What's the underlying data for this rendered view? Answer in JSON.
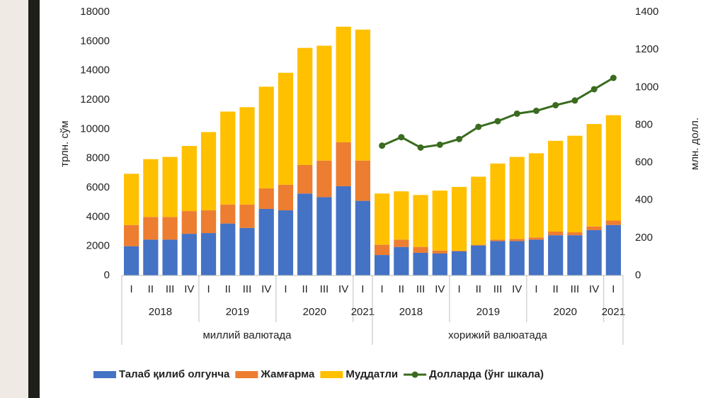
{
  "chart_data": {
    "type": "bar",
    "stacked": true,
    "categories": [
      "I",
      "II",
      "III",
      "IV",
      "I",
      "II",
      "III",
      "IV",
      "I",
      "II",
      "III",
      "IV",
      "I",
      "I",
      "II",
      "III",
      "IV",
      "I",
      "II",
      "III",
      "IV",
      "I",
      "II",
      "III",
      "IV",
      "I"
    ],
    "year_labels": [
      "2018",
      null,
      null,
      null,
      "2019",
      null,
      null,
      null,
      "2020",
      null,
      null,
      null,
      "2021",
      "2018",
      null,
      null,
      null,
      "2019",
      null,
      null,
      null,
      "2020",
      null,
      null,
      null,
      "2021"
    ],
    "currency_labels": [
      "миллий валютада",
      null,
      null,
      null,
      null,
      null,
      null,
      null,
      null,
      null,
      null,
      null,
      null,
      "хорижий валюатада",
      null,
      null,
      null,
      null,
      null,
      null,
      null,
      null,
      null,
      null,
      null,
      null
    ],
    "ylabel": "трлн. сўм",
    "y2label": "млн. долл.",
    "ylim": [
      0,
      18000
    ],
    "yticks": [
      0,
      2000,
      4000,
      6000,
      8000,
      10000,
      12000,
      14000,
      16000,
      18000
    ],
    "y2lim": [
      0,
      1400
    ],
    "y2ticks": [
      0,
      200,
      400,
      600,
      800,
      1000,
      1200,
      1400
    ],
    "grid": false,
    "legend": "bottom",
    "series": [
      {
        "name": "Талаб қилиб олгунча",
        "color": "#4472c4",
        "values": [
          2000,
          2450,
          2450,
          2850,
          2900,
          3550,
          3250,
          4550,
          4450,
          5600,
          5350,
          6100,
          5100,
          1400,
          1950,
          1550,
          1500,
          1650,
          2050,
          2350,
          2350,
          2450,
          2750,
          2750,
          3100,
          3450
        ]
      },
      {
        "name": "Жамғарма",
        "color": "#ed7d31",
        "values": [
          1450,
          1550,
          1550,
          1550,
          1550,
          1300,
          1600,
          1400,
          1750,
          1950,
          2500,
          3000,
          2750,
          700,
          500,
          400,
          200,
          50,
          50,
          100,
          150,
          150,
          250,
          200,
          250,
          300
        ]
      },
      {
        "name": "Муддатли",
        "color": "#ffc000",
        "values": [
          3500,
          3950,
          4100,
          4450,
          5350,
          6350,
          6650,
          6950,
          7650,
          8000,
          7850,
          7900,
          8950,
          3500,
          3300,
          3550,
          4100,
          4350,
          4650,
          5200,
          5600,
          5750,
          6200,
          6600,
          7000,
          7200
        ]
      },
      {
        "name": "Долларда (ўнг шкала)",
        "color": "#3a6b1f",
        "type": "line",
        "axis": "y2",
        "values": [
          null,
          null,
          null,
          null,
          null,
          null,
          null,
          null,
          null,
          null,
          null,
          null,
          null,
          690,
          735,
          680,
          695,
          725,
          790,
          820,
          860,
          875,
          905,
          930,
          990,
          1050
        ]
      }
    ]
  }
}
